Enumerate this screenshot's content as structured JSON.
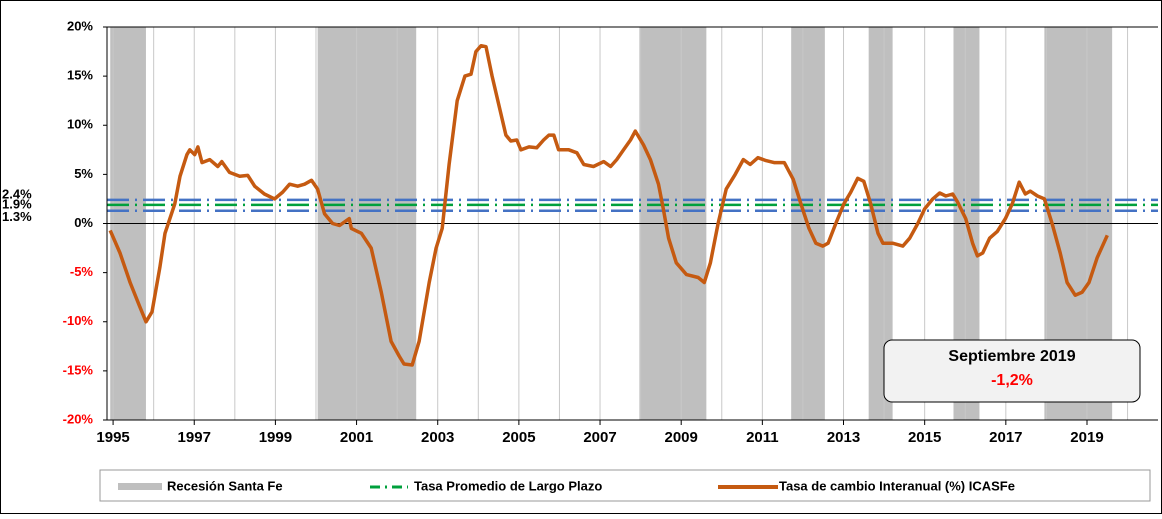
{
  "chart_data": {
    "type": "line",
    "xlim": [
      1994.85,
      2020.75
    ],
    "xticks": [
      1995,
      1997,
      1999,
      2001,
      2003,
      2005,
      2007,
      2009,
      2011,
      2013,
      2015,
      2017,
      2019
    ],
    "x_minor_ticks": [
      1996,
      1998,
      2000,
      2002,
      2004,
      2006,
      2008,
      2010,
      2012,
      2014,
      2016,
      2018,
      2020
    ],
    "ylim": [
      -20,
      20
    ],
    "yticks": [
      {
        "value": -20,
        "label": "-20%"
      },
      {
        "value": -15,
        "label": "-15%"
      },
      {
        "value": -10,
        "label": "-10%"
      },
      {
        "value": -5,
        "label": "-5%"
      },
      {
        "value": 0,
        "label": "0%"
      },
      {
        "value": 5,
        "label": "5%"
      },
      {
        "value": 10,
        "label": "10%"
      },
      {
        "value": 15,
        "label": "15%"
      },
      {
        "value": 20,
        "label": "20%"
      }
    ],
    "negative_tick_color": "#ff0000",
    "recession_name": "Recesión Santa Fe",
    "recession_color": "#bfbfbf",
    "recessions": [
      [
        1994.93,
        1995.81
      ],
      [
        2000.04,
        2002.47
      ],
      [
        2007.97,
        2009.62
      ],
      [
        2011.71,
        2012.54
      ],
      [
        2013.62,
        2014.21
      ],
      [
        2015.71,
        2016.35
      ],
      [
        2017.95,
        2019.62
      ]
    ],
    "reference_name": "Tasa Promedio de Largo Plazo",
    "reference_lines": [
      {
        "value": 2.4,
        "label": "2.4%",
        "color": "#4472c4"
      },
      {
        "value": 1.9,
        "label": "1.9%",
        "color": "#00a03c"
      },
      {
        "value": 1.3,
        "label": "1.3%",
        "color": "#4472c4"
      }
    ],
    "series": [
      {
        "name": "Tasa de cambio Interanual (%) ICASFe",
        "color": "#c55a11",
        "x": [
          1994.93,
          1995.17,
          1995.42,
          1995.66,
          1995.81,
          1995.96,
          1996.15,
          1996.28,
          1996.52,
          1996.65,
          1996.82,
          1996.89,
          1997.01,
          1997.09,
          1997.19,
          1997.38,
          1997.58,
          1997.68,
          1997.87,
          1998.12,
          1998.32,
          1998.49,
          1998.73,
          1998.98,
          1999.18,
          1999.35,
          1999.55,
          1999.72,
          1999.89,
          2000.04,
          2000.21,
          2000.41,
          2000.58,
          2000.82,
          2000.87,
          2001.12,
          2001.36,
          2001.61,
          2001.85,
          2002.05,
          2002.17,
          2002.37,
          2002.54,
          2002.79,
          2002.96,
          2003.11,
          2003.28,
          2003.48,
          2003.67,
          2003.82,
          2003.94,
          2004.07,
          2004.19,
          2004.34,
          2004.51,
          2004.68,
          2004.8,
          2004.95,
          2005.05,
          2005.25,
          2005.44,
          2005.61,
          2005.74,
          2005.86,
          2005.98,
          2006.23,
          2006.43,
          2006.6,
          2006.84,
          2007.09,
          2007.26,
          2007.41,
          2007.58,
          2007.75,
          2007.87,
          2008.07,
          2008.24,
          2008.44,
          2008.56,
          2008.69,
          2008.88,
          2009.13,
          2009.42,
          2009.57,
          2009.72,
          2009.91,
          2010.11,
          2010.33,
          2010.53,
          2010.7,
          2010.89,
          2011.09,
          2011.29,
          2011.54,
          2011.76,
          2011.95,
          2012.15,
          2012.32,
          2012.49,
          2012.62,
          2012.81,
          2013.01,
          2013.18,
          2013.35,
          2013.5,
          2013.67,
          2013.85,
          2013.97,
          2014.21,
          2014.46,
          2014.63,
          2014.83,
          2015.0,
          2015.2,
          2015.37,
          2015.52,
          2015.69,
          2015.81,
          2016.01,
          2016.18,
          2016.3,
          2016.43,
          2016.6,
          2016.79,
          2016.99,
          2017.16,
          2017.33,
          2017.48,
          2017.6,
          2017.78,
          2017.95,
          2018.14,
          2018.34,
          2018.51,
          2018.71,
          2018.88,
          2019.05,
          2019.25,
          2019.5
        ],
        "values": [
          -0.7,
          -3,
          -6,
          -8.5,
          -10,
          -9,
          -4.5,
          -1,
          2,
          4.8,
          7,
          7.5,
          7,
          7.8,
          6.2,
          6.5,
          5.8,
          6.3,
          5.2,
          4.8,
          4.9,
          3.8,
          3.0,
          2.5,
          3.2,
          4.0,
          3.8,
          4.0,
          4.4,
          3.5,
          1.0,
          0.0,
          -0.2,
          0.5,
          -0.5,
          -1.0,
          -2.5,
          -7,
          -12,
          -13.5,
          -14.3,
          -14.4,
          -12,
          -6,
          -2.5,
          -0.5,
          6,
          12.5,
          15,
          15.2,
          17.5,
          18.1,
          18.0,
          15,
          12,
          9,
          8.4,
          8.5,
          7.5,
          7.8,
          7.7,
          8.5,
          9.0,
          9.0,
          7.5,
          7.5,
          7.2,
          6.0,
          5.8,
          6.3,
          5.8,
          6.5,
          7.5,
          8.5,
          9.4,
          8.0,
          6.5,
          4.0,
          1.5,
          -1.5,
          -4,
          -5.2,
          -5.5,
          -6,
          -4,
          0,
          3.5,
          5,
          6.5,
          6.0,
          6.7,
          6.4,
          6.2,
          6.2,
          4.5,
          2,
          -0.5,
          -2.0,
          -2.3,
          -2.0,
          0,
          2.0,
          3.2,
          4.6,
          4.3,
          2.0,
          -1.0,
          -2.0,
          -2.0,
          -2.3,
          -1.5,
          0.0,
          1.5,
          2.5,
          3.1,
          2.8,
          3.0,
          2.2,
          0.5,
          -2,
          -3.3,
          -3.0,
          -1.5,
          -0.8,
          0.5,
          2.0,
          4.2,
          3.0,
          3.3,
          2.8,
          2.5,
          0,
          -3,
          -6,
          -7.3,
          -7,
          -6,
          -3.5,
          -1.2
        ]
      }
    ],
    "annotation": {
      "title": "Septiembre 2019",
      "text": "-1,2%"
    }
  }
}
